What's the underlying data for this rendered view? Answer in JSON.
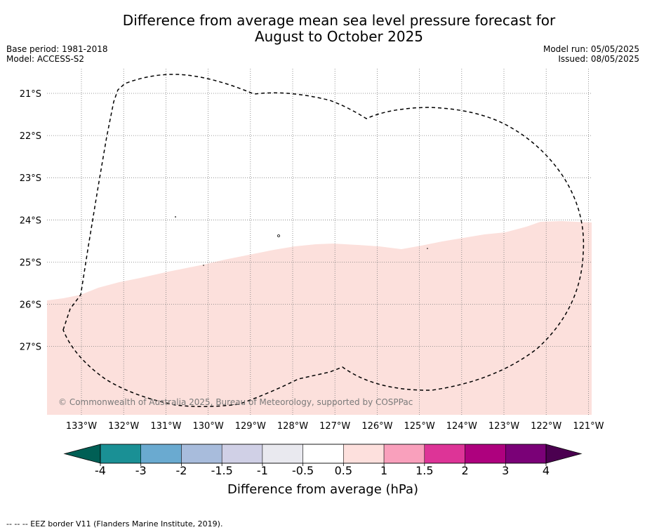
{
  "title_line1": "Difference from average mean sea level pressure forecast for",
  "title_line2": "August to October 2025",
  "meta_left": {
    "base_period": "Base period: 1981-2018",
    "model": "Model: ACCESS-S2"
  },
  "meta_right": {
    "model_run": "Model run: 05/05/2025",
    "issued": "Issued: 08/05/2025"
  },
  "copyright": "© Commonwealth of Australia 2025, Bureau of Meteorology, supported by COSPPac",
  "footer": "-- -- -- EEZ border V11 (Flanders Marine Institute, 2019).",
  "map": {
    "lon_labels": [
      "133°W",
      "132°W",
      "131°W",
      "130°W",
      "129°W",
      "128°W",
      "127°W",
      "126°W",
      "125°W",
      "124°W",
      "123°W",
      "122°W",
      "121°W"
    ],
    "lat_labels": [
      "21°S",
      "22°S",
      "23°S",
      "24°S",
      "25°S",
      "26°S",
      "27°S"
    ],
    "shade_color": "#fce0dc",
    "shade_category": "0.5 to 1"
  },
  "colorbar": {
    "label": "Difference from average (hPa)",
    "ticks": [
      "-4",
      "-3",
      "-2",
      "-1.5",
      "-1",
      "-0.5",
      "0.5",
      "1",
      "1.5",
      "2",
      "3",
      "4"
    ],
    "under_color": "#005f55",
    "over_color": "#4b0050",
    "colors": [
      "#1a9095",
      "#6aaad0",
      "#a8bcdc",
      "#d0d0e6",
      "#e9e9ef",
      "#ffffff",
      "#fde0dd",
      "#f9a0bc",
      "#dd3497",
      "#ae017e",
      "#7a0177"
    ]
  }
}
